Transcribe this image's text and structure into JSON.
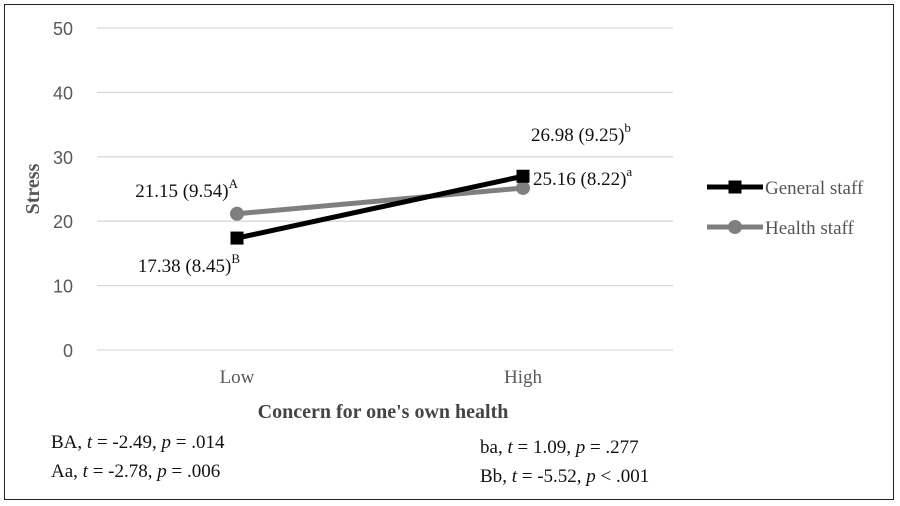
{
  "chart_data": {
    "type": "line",
    "title": "",
    "xlabel": "Concern for one's own health",
    "ylabel": "Stress",
    "categories": [
      "Low",
      "High"
    ],
    "ylim": [
      0,
      50
    ],
    "yticks": [
      0,
      10,
      20,
      30,
      40,
      50
    ],
    "grid": true,
    "legend_position": "right",
    "series": [
      {
        "name": "General staff",
        "values": [
          17.38,
          26.98
        ],
        "color": "#000000",
        "marker": "square",
        "labels": [
          {
            "text": "17.38 (8.45)",
            "sup": "B"
          },
          {
            "text": "26.98 (9.25)",
            "sup": "b"
          }
        ]
      },
      {
        "name": "Health staff",
        "values": [
          21.15,
          25.16
        ],
        "color": "#7f7f7f",
        "marker": "circle",
        "labels": [
          {
            "text": "21.15 (9.54)",
            "sup": "A"
          },
          {
            "text": "25.16 (8.22)",
            "sup": "a"
          }
        ]
      }
    ]
  },
  "stats": {
    "BA": {
      "pair": "BA",
      "t": "-2.49",
      "p_op": "=",
      "p": ".014"
    },
    "Aa": {
      "pair": "Aa",
      "t": "-2.78",
      "p_op": "=",
      "p": ".006"
    },
    "ba": {
      "pair": "ba",
      "t": "1.09",
      "p_op": "=",
      "p": ".277"
    },
    "Bb": {
      "pair": "Bb",
      "t": "-5.52",
      "p_op": "<",
      "p": ".001"
    }
  },
  "stat_symbols": {
    "t": "t",
    "p": "p"
  }
}
